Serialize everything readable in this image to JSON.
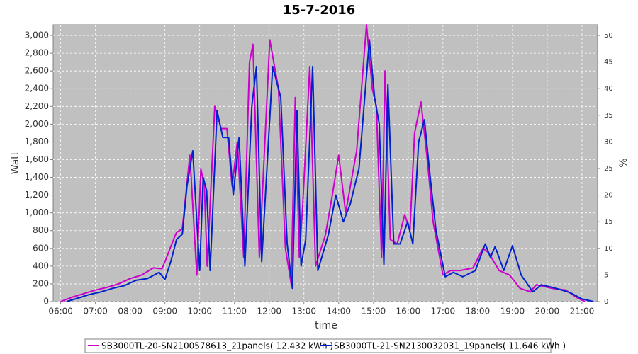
{
  "chart_data": {
    "type": "line",
    "title": "15-7-2016",
    "x_label": "time",
    "y_label": "Watt",
    "y2_label": "%",
    "xlim": [
      "05:47",
      "21:27"
    ],
    "xticks": [
      "06:00",
      "07:00",
      "08:00",
      "09:00",
      "10:00",
      "11:00",
      "12:00",
      "13:00",
      "14:00",
      "15:00",
      "16:00",
      "17:00",
      "18:00",
      "19:00",
      "20:00",
      "21:00"
    ],
    "ylim": [
      0,
      3120
    ],
    "yticks": [
      0,
      200,
      400,
      600,
      800,
      {
        "value": 1000,
        "label": "1,000"
      },
      {
        "value": 1200,
        "label": "1,200"
      },
      {
        "value": 1400,
        "label": "1,400"
      },
      {
        "value": 1600,
        "label": "1,600"
      },
      {
        "value": 1800,
        "label": "1,800"
      },
      {
        "value": 2000,
        "label": "2,000"
      },
      {
        "value": 2200,
        "label": "2,200"
      },
      {
        "value": 2400,
        "label": "2,400"
      },
      {
        "value": 2600,
        "label": "2,600"
      },
      {
        "value": 2800,
        "label": "2,800"
      },
      {
        "value": 3000,
        "label": "3,000"
      }
    ],
    "y2lim": [
      0,
      52
    ],
    "y2ticks": [
      0,
      5,
      10,
      15,
      20,
      25,
      30,
      35,
      40,
      45,
      50
    ],
    "grid": true,
    "legend": "bottom",
    "series": [
      {
        "name": "SB3000TL-20-SN2100578613_21panels( 12.432 kWh )",
        "color": "#cc00cc",
        "x": [
          "06:00",
          "06:20",
          "06:40",
          "07:00",
          "07:20",
          "07:40",
          "08:00",
          "08:20",
          "08:40",
          "08:55",
          "09:00",
          "09:10",
          "09:20",
          "09:30",
          "09:43",
          "09:55",
          "10:02",
          "10:08",
          "10:13",
          "10:26",
          "10:37",
          "10:47",
          "10:56",
          "11:05",
          "11:16",
          "11:26",
          "11:32",
          "11:43",
          "12:01",
          "12:16",
          "12:28",
          "12:38",
          "12:45",
          "12:52",
          "12:58",
          "13:10",
          "13:20",
          "13:37",
          "13:49",
          "14:00",
          "14:12",
          "14:31",
          "14:48",
          "14:58",
          "15:05",
          "15:14",
          "15:20",
          "15:29",
          "15:41",
          "15:54",
          "16:03",
          "16:11",
          "16:22",
          "16:33",
          "16:43",
          "17:00",
          "17:13",
          "17:30",
          "17:52",
          "18:09",
          "18:19",
          "18:37",
          "18:55",
          "19:13",
          "19:31",
          "19:41",
          "20:08",
          "20:32",
          "20:50",
          "21:05"
        ],
        "values": [
          0,
          50,
          90,
          130,
          160,
          200,
          260,
          300,
          380,
          370,
          450,
          620,
          780,
          820,
          1650,
          300,
          1500,
          1300,
          400,
          2200,
          1950,
          1950,
          1300,
          1800,
          500,
          2700,
          2900,
          500,
          2950,
          2400,
          600,
          200,
          2300,
          500,
          1100,
          2650,
          400,
          750,
          1200,
          1650,
          1000,
          1700,
          3120,
          2400,
          2200,
          500,
          2600,
          700,
          650,
          980,
          800,
          1900,
          2250,
          1600,
          900,
          300,
          350,
          350,
          380,
          600,
          550,
          350,
          300,
          150,
          110,
          190,
          150,
          130,
          50,
          0
        ]
      },
      {
        "name": "SB3000TL-21-SN2130032031_19panels( 11.646 kWh )",
        "color": "#0022cc",
        "x": [
          "06:10",
          "06:30",
          "06:50",
          "07:10",
          "07:30",
          "07:50",
          "08:10",
          "08:30",
          "08:50",
          "09:00",
          "09:10",
          "09:20",
          "09:30",
          "09:38",
          "09:48",
          "10:00",
          "10:06",
          "10:12",
          "10:18",
          "10:30",
          "10:40",
          "10:50",
          "10:58",
          "11:08",
          "11:18",
          "11:30",
          "11:38",
          "11:47",
          "12:06",
          "12:20",
          "12:31",
          "12:40",
          "12:48",
          "12:55",
          "13:03",
          "13:15",
          "13:24",
          "13:42",
          "13:55",
          "14:08",
          "14:20",
          "14:35",
          "14:53",
          "15:02",
          "15:10",
          "15:18",
          "15:25",
          "15:35",
          "15:46",
          "15:59",
          "16:08",
          "16:18",
          "16:28",
          "16:38",
          "16:48",
          "17:04",
          "17:18",
          "17:34",
          "17:56",
          "18:13",
          "18:22",
          "18:30",
          "18:45",
          "19:00",
          "19:15",
          "19:35",
          "19:50",
          "20:15",
          "20:40",
          "21:00",
          "21:20"
        ],
        "values": [
          0,
          40,
          80,
          110,
          150,
          180,
          240,
          260,
          330,
          250,
          450,
          700,
          760,
          1300,
          1700,
          350,
          1400,
          1250,
          350,
          2150,
          1850,
          1850,
          1200,
          1850,
          400,
          2200,
          2650,
          450,
          2650,
          2300,
          650,
          150,
          2150,
          400,
          700,
          2650,
          350,
          750,
          1200,
          900,
          1100,
          1500,
          2950,
          2300,
          2000,
          420,
          2450,
          650,
          650,
          900,
          650,
          1800,
          2050,
          1400,
          800,
          280,
          330,
          280,
          350,
          650,
          500,
          620,
          350,
          630,
          300,
          110,
          190,
          150,
          100,
          30,
          0
        ]
      }
    ]
  }
}
